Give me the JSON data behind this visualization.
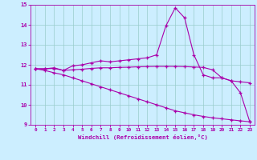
{
  "xlabel": "Windchill (Refroidissement éolien,°C)",
  "background_color": "#cceeff",
  "line_color": "#aa00aa",
  "grid_color": "#99cccc",
  "xlim": [
    -0.5,
    23.5
  ],
  "ylim": [
    9,
    15
  ],
  "yticks": [
    9,
    10,
    11,
    12,
    13,
    14,
    15
  ],
  "xticks": [
    0,
    1,
    2,
    3,
    4,
    5,
    6,
    7,
    8,
    9,
    10,
    11,
    12,
    13,
    14,
    15,
    16,
    17,
    18,
    19,
    20,
    21,
    22,
    23
  ],
  "line1_x": [
    0,
    1,
    2,
    3,
    4,
    5,
    6,
    7,
    8,
    9,
    10,
    11,
    12,
    13,
    14,
    15,
    16,
    17,
    18,
    19,
    20,
    21,
    22,
    23
  ],
  "line1_y": [
    11.8,
    11.8,
    11.85,
    11.72,
    11.95,
    12.0,
    12.1,
    12.2,
    12.15,
    12.2,
    12.25,
    12.3,
    12.35,
    12.5,
    13.95,
    14.85,
    14.35,
    12.5,
    11.5,
    11.35,
    11.35,
    11.2,
    10.6,
    9.15
  ],
  "line2_x": [
    0,
    1,
    2,
    3,
    4,
    5,
    6,
    7,
    8,
    9,
    10,
    11,
    12,
    13,
    14,
    15,
    16,
    17,
    18,
    19,
    20,
    21,
    22,
    23
  ],
  "line2_y": [
    11.8,
    11.8,
    11.82,
    11.72,
    11.75,
    11.78,
    11.82,
    11.85,
    11.85,
    11.87,
    11.88,
    11.9,
    11.91,
    11.92,
    11.92,
    11.92,
    11.91,
    11.89,
    11.87,
    11.75,
    11.35,
    11.2,
    11.15,
    11.1
  ],
  "line3_x": [
    0,
    1,
    2,
    3,
    4,
    5,
    6,
    7,
    8,
    9,
    10,
    11,
    12,
    13,
    14,
    15,
    16,
    17,
    18,
    19,
    20,
    21,
    22,
    23
  ],
  "line3_y": [
    11.8,
    11.72,
    11.6,
    11.5,
    11.35,
    11.2,
    11.05,
    10.9,
    10.75,
    10.6,
    10.45,
    10.3,
    10.15,
    10.0,
    9.85,
    9.7,
    9.6,
    9.5,
    9.42,
    9.35,
    9.3,
    9.25,
    9.2,
    9.15
  ]
}
